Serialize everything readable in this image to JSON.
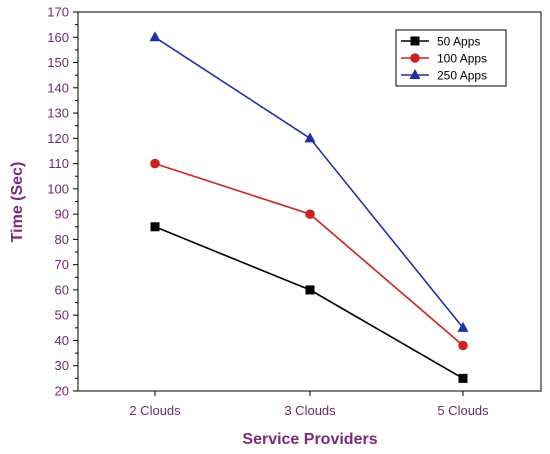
{
  "chart_data": {
    "type": "line",
    "title": "",
    "xlabel": "Service Providers",
    "ylabel": "Time (Sec)",
    "categories": [
      "2 Clouds",
      "3 Clouds",
      "5 Clouds"
    ],
    "ylim": [
      20,
      170
    ],
    "yticks": [
      20,
      30,
      40,
      50,
      60,
      70,
      80,
      90,
      100,
      110,
      120,
      130,
      140,
      150,
      160,
      170
    ],
    "grid": false,
    "legend_position": "top-right",
    "series": [
      {
        "name": "50 Apps",
        "values": [
          85,
          60,
          25
        ],
        "color": "#000000",
        "marker": "square"
      },
      {
        "name": "100 Apps",
        "values": [
          110,
          90,
          38
        ],
        "color": "#cc2222",
        "marker": "circle"
      },
      {
        "name": "250 Apps",
        "values": [
          160,
          120,
          45
        ],
        "color": "#1f2fa8",
        "marker": "triangle"
      }
    ]
  }
}
